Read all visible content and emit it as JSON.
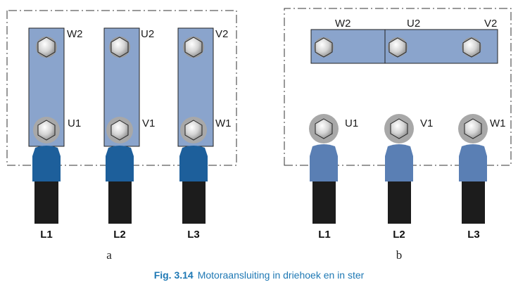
{
  "panel_a": {
    "label": "a",
    "links": [
      {
        "top": "W2",
        "bottom": "U1",
        "line": "L1"
      },
      {
        "top": "U2",
        "bottom": "V1",
        "line": "L2"
      },
      {
        "top": "V2",
        "bottom": "W1",
        "line": "L3"
      }
    ]
  },
  "panel_b": {
    "label": "b",
    "bridge_terminals": [
      "W2",
      "U2",
      "V2"
    ],
    "terminals": [
      "U1",
      "V1",
      "W1"
    ],
    "lines": [
      "L1",
      "L2",
      "L3"
    ]
  },
  "caption": {
    "number": "Fig. 3.14",
    "text": "Motoraansluiting in driehoek en in ster"
  },
  "colors": {
    "link_plate": "#8aa4cc",
    "lug_panel_a": "#1d5f9b",
    "lug_panel_b": "#5a7fb4",
    "cable": "#1c1c1c",
    "nut": "#cfcfcf",
    "caption": "#1e78b4"
  }
}
